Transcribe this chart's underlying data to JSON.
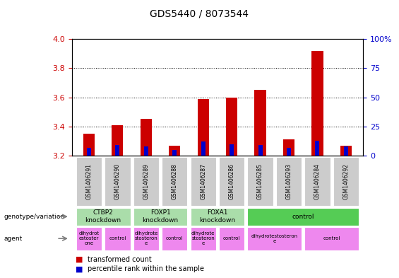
{
  "title": "GDS5440 / 8073544",
  "samples": [
    "GSM1406291",
    "GSM1406290",
    "GSM1406289",
    "GSM1406288",
    "GSM1406287",
    "GSM1406286",
    "GSM1406285",
    "GSM1406293",
    "GSM1406284",
    "GSM1406292"
  ],
  "transformed_count": [
    3.35,
    3.41,
    3.45,
    3.27,
    3.59,
    3.6,
    3.65,
    3.31,
    3.92,
    3.27
  ],
  "percentile_rank": [
    7,
    9,
    8,
    5,
    12,
    10,
    9,
    7,
    13,
    8
  ],
  "ylim_left": [
    3.2,
    4.0
  ],
  "ylim_right": [
    0,
    100
  ],
  "yticks_left": [
    3.2,
    3.4,
    3.6,
    3.8,
    4.0
  ],
  "yticks_right": [
    0,
    25,
    50,
    75,
    100
  ],
  "bar_base": 3.2,
  "red_color": "#cc0000",
  "blue_color": "#0000cc",
  "bar_width": 0.4,
  "blue_bar_width": 0.15,
  "genotype_groups": [
    {
      "label": "CTBP2\nknockdown",
      "start": 0,
      "end": 2,
      "color": "#aaddaa"
    },
    {
      "label": "FOXP1\nknockdown",
      "start": 2,
      "end": 4,
      "color": "#aaddaa"
    },
    {
      "label": "FOXA1\nknockdown",
      "start": 4,
      "end": 6,
      "color": "#aaddaa"
    },
    {
      "label": "control",
      "start": 6,
      "end": 10,
      "color": "#55cc55"
    }
  ],
  "agent_groups": [
    {
      "label": "dihydrot\nestoster\none",
      "start": 0,
      "end": 1,
      "color": "#ee88ee"
    },
    {
      "label": "control",
      "start": 1,
      "end": 2,
      "color": "#ee88ee"
    },
    {
      "label": "dihydrote\nstosteron\ne",
      "start": 2,
      "end": 3,
      "color": "#ee88ee"
    },
    {
      "label": "control",
      "start": 3,
      "end": 4,
      "color": "#ee88ee"
    },
    {
      "label": "dihydrote\nstosteron\ne",
      "start": 4,
      "end": 5,
      "color": "#ee88ee"
    },
    {
      "label": "control",
      "start": 5,
      "end": 6,
      "color": "#ee88ee"
    },
    {
      "label": "dihydrotestosteron\ne",
      "start": 6,
      "end": 8,
      "color": "#ee88ee"
    },
    {
      "label": "control",
      "start": 8,
      "end": 10,
      "color": "#ee88ee"
    }
  ],
  "background_color": "#ffffff",
  "tick_color_left": "#cc0000",
  "tick_color_right": "#0000cc"
}
